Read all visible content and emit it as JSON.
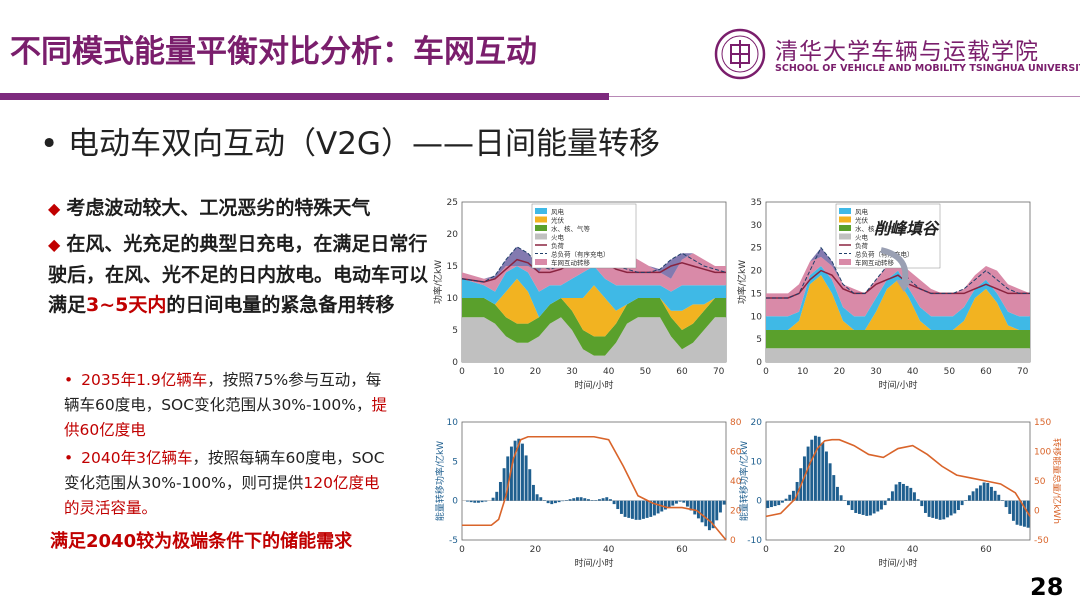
{
  "header": {
    "title": "不同模式能量平衡对比分析：车网互动",
    "logo_name": "清华大学车辆与运载学院",
    "logo_en": "SCHOOL OF VEHICLE AND MOBILITY TSINGHUA UNIVERSITY"
  },
  "subtitle": "电动车双向互动（V2G）——日间能量转移",
  "bullets": {
    "b1": "考虑波动较大、工况恶劣的特殊天气",
    "b2_part1": "在风、光充足的典型日充电，在满足日常行驶后，在风、光不足的日内放电。电动车可以满足",
    "b2_highlight": "3~5天内",
    "b2_part2": "的日间电量的紧急备用转移"
  },
  "sub_bullets": {
    "s1_red": "2035年1.9亿辆车",
    "s1_text": "，按照75%参与互动，每辆车60度电，SOC变化范围从30%-100%，",
    "s1_red2": "提供60亿度电",
    "s2_red": "2040年3亿辆车",
    "s2_text": "，按照每辆车60度电，SOC变化范围从30%-100%，则可提供",
    "s2_red2": "120亿度电的灵活容量。"
  },
  "conclusion": "满足2040较为极端条件下的储能需求",
  "page_number": "28",
  "charts": {
    "annotation": "削峰填谷",
    "legend": [
      "风电",
      "光伏",
      "水、核、气等",
      "火电",
      "负荷",
      "总负荷（有序充电）",
      "车网互动转移"
    ],
    "xlabel": "时间/小时",
    "ylabel_top": "功率/亿kW",
    "ylabel_bottom_left": "能量转移功率/亿kW",
    "ylabel_bottom_right": "转移能量总量/亿kWh",
    "colors": {
      "wind": "#3fb9e6",
      "solar": "#f2b321",
      "hydro": "#5aa02c",
      "thermal": "#c0c0c0",
      "load": "#8a2440",
      "v2g": "#d98aa8",
      "peak": "#5a4e96",
      "storage": "#d9642a",
      "bar": "#1f5f8f"
    }
  },
  "chart_data": [
    {
      "type": "area",
      "title": "",
      "xlabel": "时间/小时",
      "ylabel": "功率/亿kW",
      "xlim": [
        0,
        72
      ],
      "ylim": [
        0,
        25
      ],
      "x": [
        0,
        6,
        9,
        12,
        15,
        18,
        21,
        24,
        27,
        30,
        33,
        36,
        39,
        42,
        45,
        48,
        51,
        54,
        57,
        60,
        63,
        66,
        69,
        72
      ],
      "series": [
        {
          "name": "火电",
          "values": [
            7,
            7,
            6,
            4,
            3,
            3,
            4,
            6,
            7,
            5,
            2,
            1,
            1,
            3,
            6,
            7,
            7,
            7,
            4,
            2,
            3,
            5,
            7,
            7
          ]
        },
        {
          "name": "水、核、气等",
          "values": [
            3,
            3,
            3,
            3,
            3,
            3,
            3,
            3,
            3,
            3,
            3,
            3,
            3,
            3,
            3,
            3,
            3,
            3,
            3,
            3,
            3,
            3,
            3,
            3
          ]
        },
        {
          "name": "光伏",
          "values": [
            0,
            0,
            0,
            4,
            7,
            5,
            0,
            0,
            0,
            2,
            5,
            8,
            6,
            2,
            0,
            0,
            0,
            0,
            1,
            3,
            3,
            1,
            0,
            0
          ]
        },
        {
          "name": "风电",
          "values": [
            3,
            2,
            2,
            3,
            2,
            3,
            4,
            3,
            2,
            3,
            4,
            3,
            3,
            4,
            3,
            2,
            2,
            2,
            3,
            4,
            3,
            3,
            2,
            2
          ]
        },
        {
          "name": "车网互动转移",
          "values": [
            1,
            1,
            2,
            1,
            0,
            1,
            3,
            5,
            4,
            3,
            2,
            1,
            3,
            4,
            5,
            4,
            3,
            2,
            2,
            4,
            5,
            4,
            3,
            3
          ]
        },
        {
          "name": "负荷",
          "values": [
            13,
            12.5,
            13,
            14.5,
            16,
            15.5,
            14,
            14,
            14.5,
            15.5,
            16,
            16.5,
            15.5,
            14.5,
            14,
            14,
            14,
            14,
            15,
            15.5,
            15,
            14.5,
            14,
            14
          ]
        },
        {
          "name": "总负荷（有序充电）",
          "values": [
            13,
            12.5,
            13.5,
            16,
            18,
            17,
            15,
            14.5,
            15,
            17,
            18,
            18.5,
            16.5,
            15,
            14.5,
            14,
            14,
            14.5,
            16,
            17,
            16,
            15,
            14.5,
            14
          ]
        }
      ]
    },
    {
      "type": "area",
      "title": "削峰填谷",
      "xlabel": "时间/小时",
      "ylabel": "功率/亿kW",
      "xlim": [
        0,
        72
      ],
      "ylim": [
        0,
        35
      ],
      "x": [
        0,
        6,
        9,
        12,
        15,
        18,
        21,
        24,
        27,
        30,
        33,
        36,
        39,
        42,
        45,
        48,
        51,
        54,
        57,
        60,
        63,
        66,
        69,
        72
      ],
      "series": [
        {
          "name": "火电",
          "values": [
            3,
            3,
            3,
            3,
            3,
            3,
            3,
            3,
            3,
            3,
            3,
            3,
            3,
            3,
            3,
            3,
            3,
            3,
            3,
            3,
            3,
            3,
            3,
            3
          ]
        },
        {
          "name": "水、核、气等",
          "values": [
            4,
            4,
            4,
            4,
            4,
            4,
            4,
            4,
            4,
            4,
            4,
            4,
            4,
            4,
            4,
            4,
            4,
            4,
            4,
            4,
            4,
            4,
            4,
            4
          ]
        },
        {
          "name": "光伏",
          "values": [
            0,
            0,
            2,
            10,
            12,
            8,
            2,
            0,
            0,
            4,
            9,
            11,
            7,
            2,
            0,
            0,
            0,
            2,
            7,
            9,
            6,
            1,
            0,
            0
          ]
        },
        {
          "name": "风电",
          "values": [
            3,
            3,
            2,
            2,
            2,
            3,
            3,
            3,
            3,
            3,
            2,
            2,
            2,
            3,
            3,
            3,
            3,
            3,
            2,
            2,
            2,
            3,
            3,
            3
          ]
        },
        {
          "name": "车网互动转移",
          "values": [
            5,
            5,
            6,
            3,
            2,
            3,
            5,
            6,
            5,
            4,
            3,
            2,
            4,
            6,
            6,
            5,
            5,
            4,
            3,
            3,
            5,
            6,
            6,
            5
          ]
        },
        {
          "name": "负荷",
          "values": [
            14,
            14,
            15,
            18,
            20,
            19,
            16,
            15,
            15,
            17,
            18,
            19,
            17,
            16,
            15,
            15,
            15,
            15,
            16,
            17,
            16,
            15,
            15,
            15
          ]
        },
        {
          "name": "总负荷（有序充电）",
          "values": [
            14,
            14,
            15,
            20,
            25,
            22,
            17,
            15,
            15,
            18,
            21,
            22,
            18,
            16,
            15,
            15,
            15,
            16,
            18,
            20,
            18,
            16,
            15,
            15
          ]
        }
      ]
    },
    {
      "type": "bar",
      "title": "",
      "xlabel": "时间/小时",
      "ylabel": "能量转移功率/亿kW",
      "y2label": "转移能量总量/亿kWh",
      "xlim": [
        0,
        72
      ],
      "ylim": [
        -5,
        10
      ],
      "y2lim": [
        0,
        80
      ],
      "x": [
        0,
        4,
        8,
        10,
        12,
        14,
        16,
        18,
        20,
        24,
        28,
        32,
        36,
        40,
        44,
        48,
        52,
        56,
        60,
        64,
        68,
        72
      ],
      "bar_values": [
        0,
        -0.3,
        0,
        1.5,
        5,
        7.5,
        8,
        5,
        1,
        -0.5,
        0,
        0.5,
        0,
        0.5,
        -2,
        -2.5,
        -2,
        -1,
        0,
        -2,
        -4,
        0
      ],
      "line_values": [
        10,
        10,
        10,
        14,
        30,
        55,
        68,
        70,
        70,
        70,
        70,
        70,
        70,
        68,
        50,
        30,
        25,
        22,
        22,
        20,
        12,
        0
      ]
    },
    {
      "type": "bar",
      "title": "",
      "xlabel": "时间/小时",
      "ylabel": "能量转移功率/亿kW",
      "y2label": "转移能量总量/亿kWh",
      "xlim": [
        0,
        72
      ],
      "ylim": [
        -10,
        20
      ],
      "y2lim": [
        -50,
        150
      ],
      "x": [
        0,
        4,
        8,
        10,
        12,
        14,
        16,
        18,
        20,
        24,
        28,
        32,
        36,
        40,
        44,
        48,
        52,
        56,
        60,
        64,
        68,
        72
      ],
      "bar_values": [
        -2,
        -1,
        3,
        10,
        15,
        17,
        14,
        8,
        2,
        -3,
        -4,
        -2,
        5,
        3,
        -4,
        -5,
        -3,
        2,
        5,
        1,
        -6,
        -7
      ],
      "line_values": [
        -10,
        -5,
        20,
        50,
        80,
        105,
        118,
        120,
        120,
        110,
        95,
        90,
        105,
        110,
        95,
        75,
        60,
        55,
        50,
        45,
        30,
        -10
      ]
    }
  ]
}
